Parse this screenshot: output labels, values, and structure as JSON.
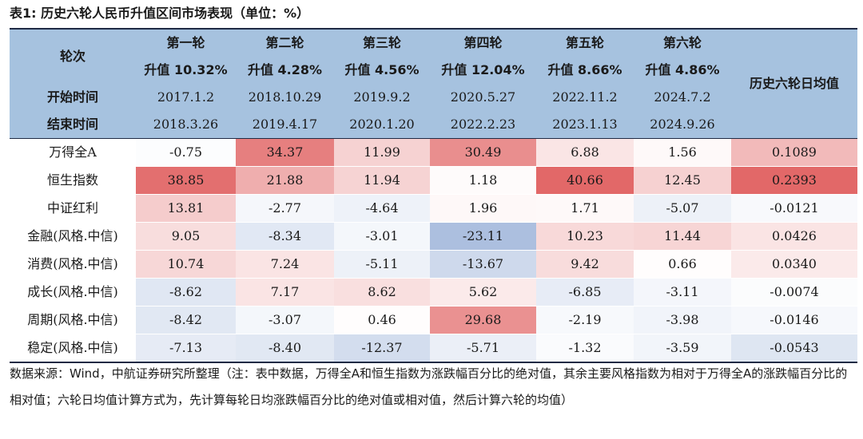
{
  "title": "表1: 历史六轮人民币升值区间市场表现（单位：%）",
  "header": {
    "col0_label": "轮次",
    "start_label": "开始时间",
    "end_label": "结束时间",
    "avg_label": "历史六轮日均值",
    "rounds": [
      {
        "name": "第一轮",
        "gain": "升值 10.32%",
        "start": "2017.1.2",
        "end": "2018.3.26"
      },
      {
        "name": "第二轮",
        "gain": "升值 4.28%",
        "start": "2018.10.29",
        "end": "2019.4.17"
      },
      {
        "name": "第三轮",
        "gain": "升值 4.56%",
        "start": "2019.9.2",
        "end": "2020.1.20"
      },
      {
        "name": "第四轮",
        "gain": "升值 12.04%",
        "start": "2020.5.27",
        "end": "2022.2.23"
      },
      {
        "name": "第五轮",
        "gain": "升值 8.66%",
        "start": "2022.11.2",
        "end": "2023.1.13"
      },
      {
        "name": "第六轮",
        "gain": "升值 4.86%",
        "start": "2024.7.2",
        "end": "2024.9.26"
      }
    ]
  },
  "rows": [
    {
      "label": "万得全A",
      "values": [
        "-0.75",
        "34.37",
        "11.99",
        "30.49",
        "6.88",
        "1.56"
      ],
      "avg": "0.1089"
    },
    {
      "label": "恒生指数",
      "values": [
        "38.85",
        "21.88",
        "11.94",
        "1.18",
        "40.66",
        "12.45"
      ],
      "avg": "0.2393"
    },
    {
      "label": "中证红利",
      "values": [
        "13.81",
        "-2.77",
        "-4.64",
        "1.96",
        "1.71",
        "-5.07"
      ],
      "avg": "-0.0121"
    },
    {
      "label": "金融(风格.中信)",
      "values": [
        "9.05",
        "-8.34",
        "-3.01",
        "-23.11",
        "10.23",
        "11.44"
      ],
      "avg": "0.0426"
    },
    {
      "label": "消费(风格.中信)",
      "values": [
        "10.74",
        "7.24",
        "-5.11",
        "-13.67",
        "9.42",
        "0.66"
      ],
      "avg": "0.0340"
    },
    {
      "label": "成长(风格.中信)",
      "values": [
        "-8.62",
        "7.17",
        "8.62",
        "5.62",
        "-6.85",
        "-3.11"
      ],
      "avg": "-0.0074"
    },
    {
      "label": "周期(风格.中信)",
      "values": [
        "-8.42",
        "-3.07",
        "0.46",
        "29.68",
        "-2.19",
        "-3.98"
      ],
      "avg": "-0.0146"
    },
    {
      "label": "稳定(风格.中信)",
      "values": [
        "-7.13",
        "-8.40",
        "-12.37",
        "-5.71",
        "-1.32",
        "-3.59"
      ],
      "avg": "-0.0543"
    }
  ],
  "colors": {
    "header_bg": "#a6c2df",
    "positive": "#e06060",
    "negative": "#6689c4",
    "neutral": "#ffffff",
    "rule": "#1f2a44"
  },
  "source": "数据来源：Wind，中航证券研究所整理（注：表中数据，万得全A和恒生指数为涨跌幅百分比的绝对值，其余主要风格指数为相对于万得全A的涨跌幅百分比的相对值；六轮日均值计算方式为，先计算每轮日均涨跌幅百分比的绝对值或相对值，然后计算六轮的均值）"
}
